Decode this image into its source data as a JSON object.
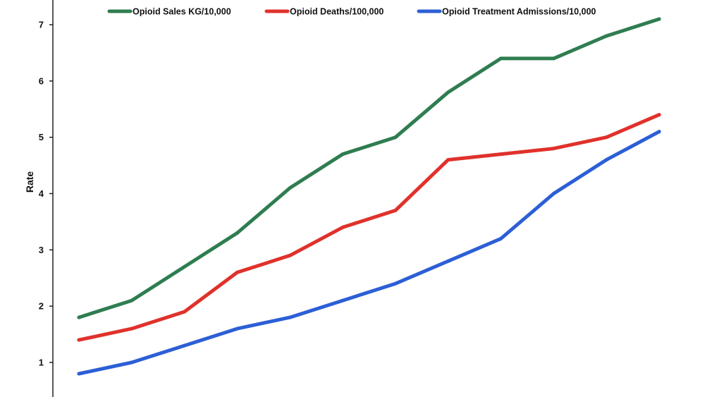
{
  "chart_data": {
    "type": "line",
    "title": "",
    "xlabel": "",
    "ylabel": "Rate",
    "ylim": [
      0.6,
      7.4
    ],
    "yticks": [
      1,
      2,
      3,
      4,
      5,
      6,
      7
    ],
    "x": [
      1,
      2,
      3,
      4,
      5,
      6,
      7,
      8,
      9,
      10,
      11,
      12
    ],
    "grid": false,
    "legend_position": "top",
    "series": [
      {
        "name": "Opioid Sales KG/10,000",
        "color": "#2e7d50",
        "values": [
          1.8,
          2.1,
          2.7,
          3.3,
          4.1,
          4.7,
          5.0,
          5.8,
          6.4,
          6.4,
          6.8,
          7.1
        ]
      },
      {
        "name": "Opioid Deaths/100,000",
        "color": "#e0312b",
        "values": [
          1.4,
          1.6,
          1.9,
          2.6,
          2.9,
          3.4,
          3.7,
          4.6,
          4.7,
          4.8,
          5.0,
          5.4
        ]
      },
      {
        "name": "Opioid Treatment Admissions/10,000",
        "color": "#2c5fd6",
        "values": [
          0.8,
          1.0,
          1.3,
          1.6,
          1.8,
          2.1,
          2.4,
          2.8,
          3.2,
          4.0,
          4.6,
          5.1
        ]
      }
    ]
  }
}
